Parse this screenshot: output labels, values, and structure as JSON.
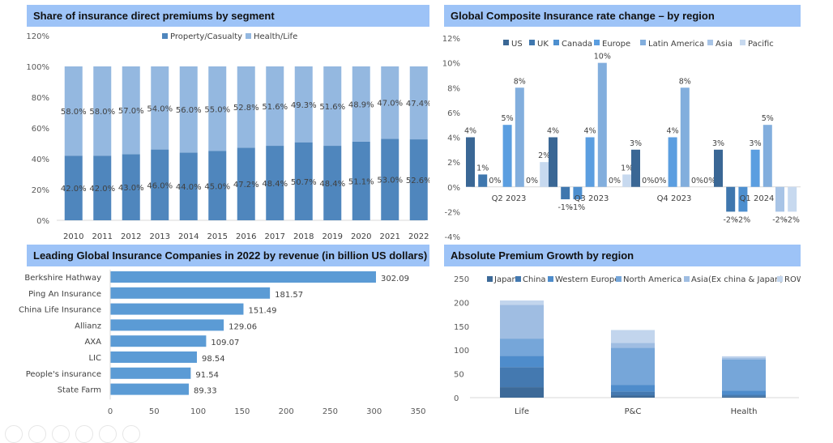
{
  "colors": {
    "header_bg": "#9dc3f7",
    "pc": "#4f86bd",
    "hl": "#94b8e0",
    "bar": "#5b9bd5",
    "regions": [
      "#3a6795",
      "#3f77ae",
      "#4d8fcf",
      "#5b9ee0",
      "#82aedd",
      "#a8c4e6",
      "#c7d9ef"
    ],
    "premium": [
      "#3d6a98",
      "#4479b0",
      "#4e8ccb",
      "#76a6d9",
      "#9fbde2",
      "#c2d5ed"
    ]
  },
  "chart_data": [
    {
      "id": "share",
      "type": "bar",
      "stacked": true,
      "title": "Share of insurance direct premiums by segment",
      "categories": [
        "2010",
        "2011",
        "2012",
        "2013",
        "2014",
        "2015",
        "2016",
        "2017",
        "2018",
        "2019",
        "2020",
        "2021",
        "2022"
      ],
      "series": [
        {
          "name": "Property/Casualty",
          "values": [
            42.0,
            42.0,
            43.0,
            46.0,
            44.0,
            45.0,
            47.2,
            48.4,
            50.7,
            48.4,
            51.1,
            53.0,
            52.6
          ]
        },
        {
          "name": "Health/Life",
          "values": [
            58.0,
            58.0,
            57.0,
            54.0,
            56.0,
            55.0,
            52.8,
            51.6,
            49.3,
            51.6,
            48.9,
            47.0,
            47.4
          ]
        }
      ],
      "labels_pc": [
        "42.0%",
        "42.0%",
        "43.0%",
        "46.0%",
        "44.0%",
        "45.0%",
        "47.2%",
        "48.4%",
        "50.7%",
        "48.4%",
        "51.1%",
        "53.0%",
        "52.6%"
      ],
      "labels_hl": [
        "58.0%",
        "58.0%",
        "57.0%",
        "54.0%",
        "56.0%",
        "55.0%",
        "52.8%",
        "51.6%",
        "49.3%",
        "51.6%",
        "48.9%",
        "47.0%",
        "47.4%"
      ],
      "yticks": [
        "0%",
        "20%",
        "40%",
        "60%",
        "80%",
        "100%",
        "120%"
      ],
      "ylim": [
        0,
        120
      ],
      "legend": "top-center"
    },
    {
      "id": "rates",
      "type": "bar",
      "title": "Global Composite Insurance rate change – by region",
      "categories": [
        "Q2 2023",
        "Q3 2023",
        "Q4 2023",
        "Q1 2024"
      ],
      "series": [
        {
          "name": "US",
          "values": [
            4,
            4,
            3,
            3
          ]
        },
        {
          "name": "UK",
          "values": [
            1,
            -1,
            0,
            -2
          ]
        },
        {
          "name": "Canada",
          "values": [
            0,
            -1,
            0,
            -2
          ]
        },
        {
          "name": "Europe",
          "values": [
            5,
            4,
            4,
            3
          ]
        },
        {
          "name": "Latin America",
          "values": [
            8,
            10,
            8,
            5
          ]
        },
        {
          "name": "Asia",
          "values": [
            0,
            0,
            0,
            -2
          ]
        },
        {
          "name": "Pacific",
          "values": [
            2,
            1,
            0,
            -2
          ]
        }
      ],
      "yticks": [
        "-4%",
        "-2%",
        "0%",
        "2%",
        "4%",
        "6%",
        "8%",
        "10%",
        "12%"
      ],
      "ylim": [
        -4,
        12
      ],
      "legend": "top"
    },
    {
      "id": "companies",
      "type": "bar",
      "orientation": "horizontal",
      "title": "Leading Global Insurance Companies in 2022 by revenue (in billion US dollars)",
      "categories": [
        "Berkshire Hathway",
        "Ping An Insurance",
        "China Life Insurance",
        "Allianz",
        "AXA",
        "LIC",
        "People's insurance",
        "State Farm"
      ],
      "values": [
        302.09,
        181.57,
        151.49,
        129.06,
        109.07,
        98.54,
        91.54,
        89.33
      ],
      "value_labels": [
        "302.09",
        "181.57",
        "151.49",
        "129.06",
        "109.07",
        "98.54",
        "91.54",
        "89.33"
      ],
      "xticks": [
        "0",
        "50",
        "100",
        "150",
        "200",
        "250",
        "300",
        "350"
      ],
      "xlim": [
        0,
        350
      ]
    },
    {
      "id": "premium",
      "type": "bar",
      "stacked": true,
      "title": "Absolute Premium Growth by region",
      "categories": [
        "Life",
        "P&C",
        "Health"
      ],
      "series": [
        {
          "name": "Japan",
          "values": [
            22,
            5,
            3
          ]
        },
        {
          "name": "China",
          "values": [
            42,
            8,
            3
          ]
        },
        {
          "name": "Western Europe",
          "values": [
            24,
            14,
            9
          ]
        },
        {
          "name": "North America",
          "values": [
            36,
            78,
            65
          ]
        },
        {
          "name": "Asia(Ex china & Japan)",
          "values": [
            71,
            10,
            4
          ]
        },
        {
          "name": "ROW",
          "values": [
            9,
            27,
            3
          ]
        }
      ],
      "yticks": [
        "0",
        "50",
        "100",
        "150",
        "200",
        "250"
      ],
      "ylim": [
        0,
        250
      ],
      "legend": "top"
    }
  ]
}
